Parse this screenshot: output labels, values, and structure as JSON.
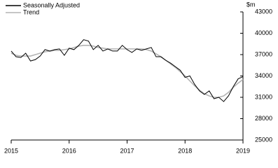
{
  "chart_data": {
    "type": "line",
    "y_unit": "$m",
    "x": [
      2015,
      2015.083,
      2015.167,
      2015.25,
      2015.333,
      2015.417,
      2015.5,
      2015.583,
      2015.667,
      2015.75,
      2015.833,
      2015.917,
      2016,
      2016.083,
      2016.167,
      2016.25,
      2016.333,
      2016.417,
      2016.5,
      2016.583,
      2016.667,
      2016.75,
      2016.833,
      2016.917,
      2017,
      2017.083,
      2017.167,
      2017.25,
      2017.333,
      2017.417,
      2017.5,
      2017.583,
      2017.667,
      2017.75,
      2017.833,
      2017.917,
      2018,
      2018.083,
      2018.167,
      2018.25,
      2018.333,
      2018.417,
      2018.5,
      2018.583,
      2018.667,
      2018.75,
      2018.833,
      2018.917,
      2019
    ],
    "series": [
      {
        "name": "Seasonally Adjusted",
        "color": "#000000",
        "values": [
          37500,
          36700,
          36600,
          37200,
          36100,
          36300,
          36800,
          37700,
          37500,
          37700,
          37800,
          36900,
          37900,
          37700,
          38300,
          39100,
          38900,
          37700,
          38300,
          37500,
          37800,
          37500,
          37500,
          38300,
          37700,
          37300,
          37800,
          37600,
          37800,
          38000,
          36700,
          36700,
          36200,
          35800,
          35300,
          34800,
          33800,
          34000,
          32800,
          31900,
          31400,
          31900,
          30800,
          31000,
          30400,
          31200,
          32500,
          33600,
          33900
        ]
      },
      {
        "name": "Trend",
        "color": "#b4b4b4",
        "values": [
          37200,
          36900,
          36800,
          36800,
          36800,
          37000,
          37200,
          37400,
          37500,
          37600,
          37600,
          37700,
          37800,
          38000,
          38200,
          38300,
          38300,
          38200,
          38000,
          37900,
          37800,
          37800,
          37800,
          37800,
          37800,
          37800,
          37800,
          37800,
          37700,
          37500,
          37100,
          36700,
          36200,
          35700,
          35200,
          34600,
          34000,
          33300,
          32600,
          32000,
          31500,
          31200,
          31000,
          31000,
          31200,
          31700,
          32400,
          33000,
          33500
        ]
      }
    ],
    "xlim": [
      2015,
      2019
    ],
    "xticks": [
      2015,
      2016,
      2017,
      2018,
      2019
    ],
    "ylim": [
      25000,
      43000
    ],
    "yticks": [
      25000,
      28000,
      31000,
      34000,
      37000,
      40000,
      43000
    ],
    "grid": false,
    "legend": "top-left"
  }
}
